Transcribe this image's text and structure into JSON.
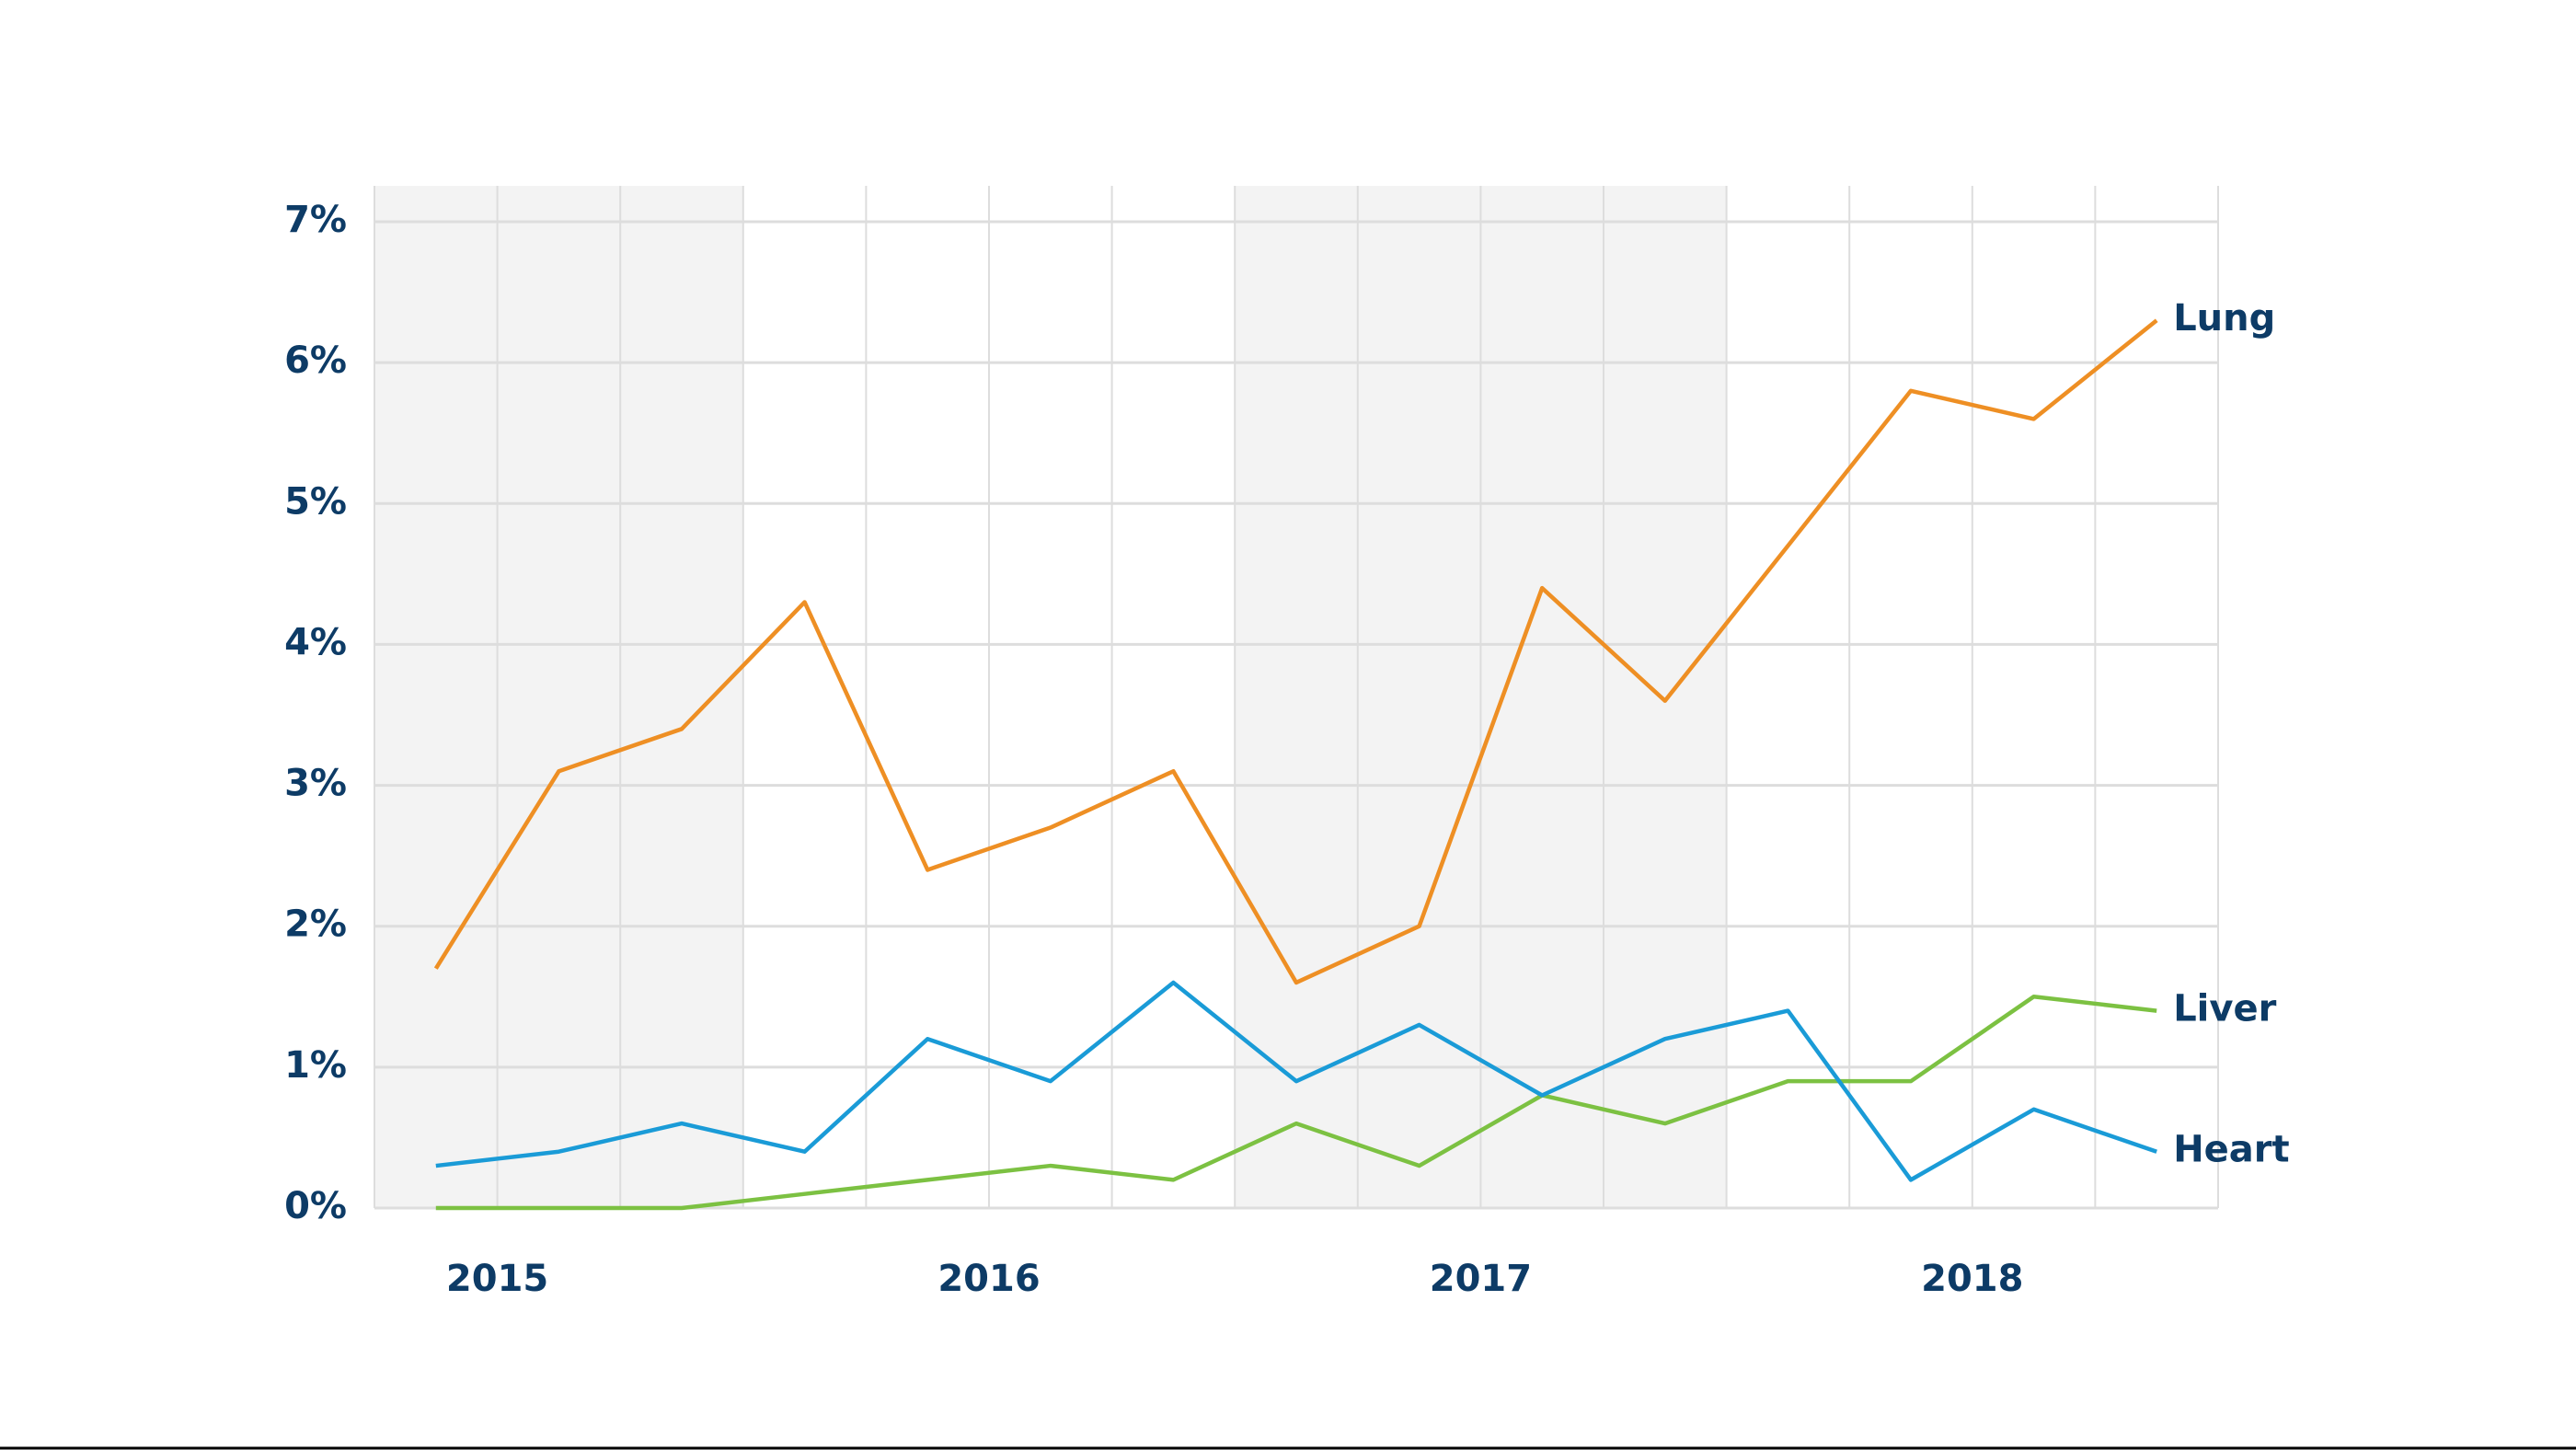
{
  "chart_data": {
    "type": "line",
    "x": [
      2014.875,
      2015.125,
      2015.375,
      2015.625,
      2015.875,
      2016.125,
      2016.375,
      2016.625,
      2016.875,
      2017.125,
      2017.375,
      2017.625,
      2017.875,
      2018.125,
      2018.375
    ],
    "xlim": [
      2014.75,
      2018.5
    ],
    "xticks": [
      2015,
      2016,
      2017,
      2018
    ],
    "grid_step": 0.25,
    "shaded_spans": [
      [
        2014.75,
        2015.5
      ],
      [
        2016.5,
        2017.5
      ]
    ],
    "ylim": [
      0,
      7
    ],
    "yticks": [
      {
        "value": 0,
        "label": "0%"
      },
      {
        "value": 1,
        "label": "1%"
      },
      {
        "value": 2,
        "label": "2%"
      },
      {
        "value": 3,
        "label": "3%"
      },
      {
        "value": 4,
        "label": "4%"
      },
      {
        "value": 5,
        "label": "5%"
      },
      {
        "value": 6,
        "label": "6%"
      },
      {
        "value": 7,
        "label": "7%"
      }
    ],
    "grid": true,
    "series": [
      {
        "name": "Lung",
        "color": "#ee8f24",
        "values": [
          1.7,
          3.1,
          3.4,
          4.3,
          2.4,
          2.7,
          3.1,
          1.6,
          2.0,
          4.4,
          3.6,
          4.7,
          5.8,
          5.6,
          6.3
        ]
      },
      {
        "name": "Liver",
        "color": "#7cc142",
        "values": [
          0,
          0,
          0,
          0.1,
          0.2,
          0.3,
          0.2,
          0.6,
          0.3,
          0.8,
          0.6,
          0.9,
          0.9,
          1.5,
          1.4
        ]
      },
      {
        "name": "Heart",
        "color": "#1a9bd7",
        "values": [
          0.3,
          0.4,
          0.6,
          0.4,
          1.2,
          0.9,
          1.6,
          0.9,
          1.3,
          0.8,
          1.2,
          1.4,
          0.2,
          0.7,
          0.4
        ]
      }
    ]
  }
}
